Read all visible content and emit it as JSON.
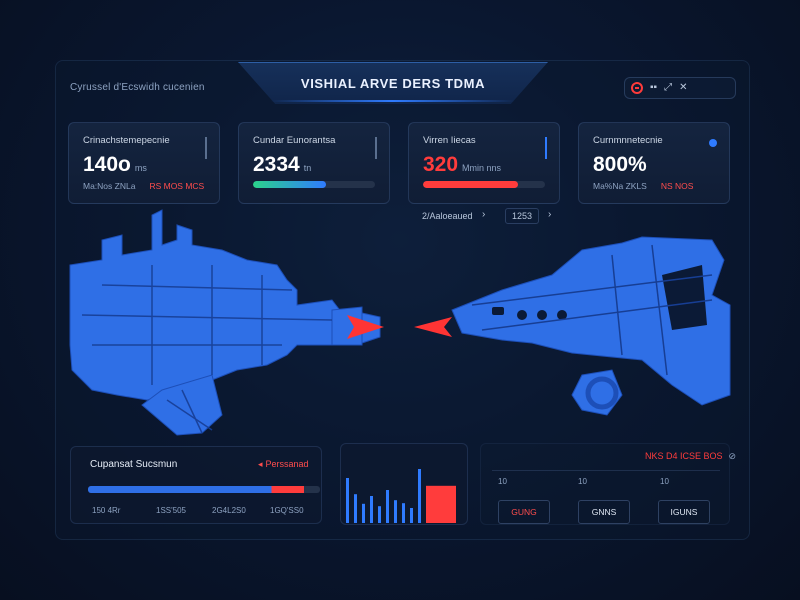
{
  "header": {
    "brand": "Cyrussel d'Ecswidh cucenien",
    "title": "VISHIAL ARVE DERS TDMA",
    "controls": [
      "record-icon",
      "grid-icon",
      "expand-icon",
      "close-icon"
    ]
  },
  "cards": [
    {
      "label": "Crinachstemepecnie",
      "value": "140o",
      "unit": "ms",
      "foot_left": "Ma:Nos ZNLa",
      "foot_right": "RS MOS MCS"
    },
    {
      "label": "Cundar Eunorantsa",
      "value": "2334",
      "unit": "tn",
      "progress": 0.6,
      "bar_color": "#2bd38b"
    },
    {
      "label": "Virren Iiecas",
      "value": "320",
      "unit": "Mmin nns",
      "progress": 0.78,
      "bar_color": "#ff3c3c"
    },
    {
      "label": "Curnmnnetecnie",
      "value": "800%",
      "unit": "",
      "foot_left": "Ma%Na ZKLS",
      "foot_right": "NS NOS"
    }
  ],
  "filters": {
    "left": "2/Aaloeaued",
    "arrow_left": "›",
    "right": "1253",
    "arrow_right": "›"
  },
  "panel_left": {
    "title": "Cupansat Sucsmun",
    "alert": "Perssanad",
    "progress": 0.93,
    "ticks": [
      "150 4Rr",
      "1SS'505",
      "2G4L2S0",
      "1GQ'SS0"
    ]
  },
  "panel_mid": {
    "bars": [
      0.75,
      0.48,
      0.32,
      0.45,
      0.28,
      0.55,
      0.38,
      0.33,
      0.25,
      0.9,
      0.62
    ],
    "highlight_index": 10
  },
  "panel_right": {
    "alert": "NKS D4 ICSE BOS",
    "ticks": [
      "10",
      "10",
      "10"
    ],
    "metrics": [
      "GUNG",
      "GNNS",
      "IGUNS"
    ]
  },
  "colors": {
    "accent": "#2f7bff",
    "alert": "#ff3c3c",
    "success": "#2bd38b",
    "ship": "#2f6fe6"
  }
}
